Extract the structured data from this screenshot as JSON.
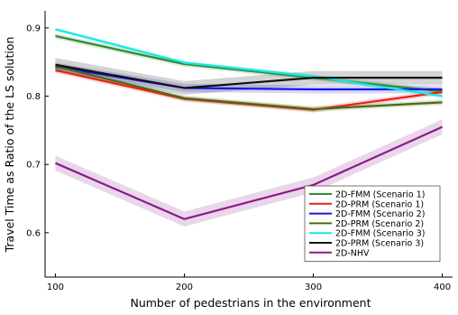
{
  "chart_data": {
    "type": "line",
    "xlabel": "Number of pedestrians in the environment",
    "ylabel": "Travel Time as Ratio of the LS solution",
    "x": [
      100,
      200,
      300,
      400
    ],
    "x_ticks": [
      "100",
      "200",
      "300",
      "400"
    ],
    "y_ticks": [
      "0.6",
      "0.7",
      "0.8",
      "0.9"
    ],
    "xlim": [
      92,
      408
    ],
    "ylim": [
      0.535,
      0.925
    ],
    "grid": false,
    "legend_position": "bottom-right",
    "series": [
      {
        "name": "2D-FMM (Scenario 1)",
        "color": "#2e8b2e",
        "values": [
          0.888,
          0.847,
          0.827,
          0.807
        ],
        "band": 0.004
      },
      {
        "name": "2D-PRM (Scenario 1)",
        "color": "#e8201a",
        "values": [
          0.838,
          0.796,
          0.78,
          0.806
        ],
        "band": 0.004
      },
      {
        "name": "2D-FMM (Scenario 2)",
        "color": "#1a1ae0",
        "values": [
          0.843,
          0.812,
          0.81,
          0.81
        ],
        "band": 0.006
      },
      {
        "name": "2D-PRM (Scenario 2)",
        "color": "#4a6a10",
        "values": [
          0.844,
          0.797,
          0.781,
          0.791
        ],
        "band": 0.004
      },
      {
        "name": "2D-FMM (Scenario 3)",
        "color": "#19e6e6",
        "values": [
          0.898,
          0.849,
          0.829,
          0.8
        ],
        "band": 0.003
      },
      {
        "name": "2D-PRM (Scenario 3)",
        "color": "#111111",
        "values": [
          0.846,
          0.812,
          0.827,
          0.827
        ],
        "band": 0.01
      },
      {
        "name": "2D-NHV",
        "color": "#8b1a8b",
        "values": [
          0.702,
          0.62,
          0.67,
          0.755
        ],
        "band": 0.011
      }
    ]
  }
}
